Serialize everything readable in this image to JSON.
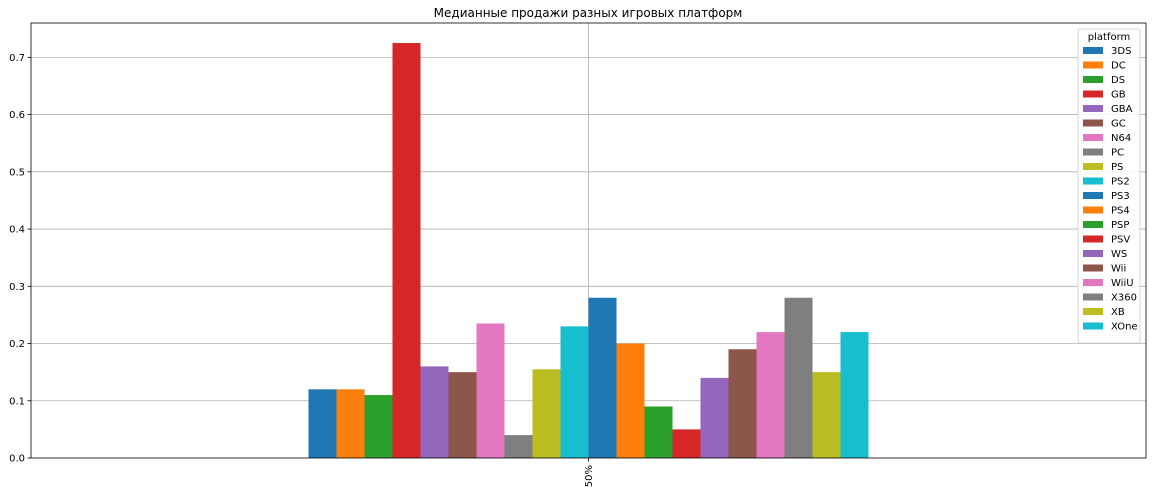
{
  "chart_data": {
    "type": "bar",
    "title": "Медианные продажи разных игровых платформ",
    "xlabel": "",
    "ylabel": "",
    "categories": [
      "50%"
    ],
    "ylim": [
      0,
      0.76
    ],
    "yticks": [
      "0.0",
      "0.1",
      "0.2",
      "0.3",
      "0.4",
      "0.5",
      "0.6",
      "0.7"
    ],
    "grid": true,
    "legend": {
      "title": "platform",
      "placement": "top-right"
    },
    "series": [
      {
        "name": "3DS",
        "color": "#1f77b4",
        "values": [
          0.12
        ]
      },
      {
        "name": "DC",
        "color": "#ff7f0e",
        "values": [
          0.12
        ]
      },
      {
        "name": "DS",
        "color": "#2ca02c",
        "values": [
          0.11
        ]
      },
      {
        "name": "GB",
        "color": "#d62728",
        "values": [
          0.725
        ]
      },
      {
        "name": "GBA",
        "color": "#9467bd",
        "values": [
          0.16
        ]
      },
      {
        "name": "GC",
        "color": "#8c564b",
        "values": [
          0.15
        ]
      },
      {
        "name": "N64",
        "color": "#e377c2",
        "values": [
          0.235
        ]
      },
      {
        "name": "PC",
        "color": "#7f7f7f",
        "values": [
          0.04
        ]
      },
      {
        "name": "PS",
        "color": "#bcbd22",
        "values": [
          0.155
        ]
      },
      {
        "name": "PS2",
        "color": "#17becf",
        "values": [
          0.23
        ]
      },
      {
        "name": "PS3",
        "color": "#1f77b4",
        "values": [
          0.28
        ]
      },
      {
        "name": "PS4",
        "color": "#ff7f0e",
        "values": [
          0.2
        ]
      },
      {
        "name": "PSP",
        "color": "#2ca02c",
        "values": [
          0.09
        ]
      },
      {
        "name": "PSV",
        "color": "#d62728",
        "values": [
          0.05
        ]
      },
      {
        "name": "WS",
        "color": "#9467bd",
        "values": [
          0.14
        ]
      },
      {
        "name": "Wii",
        "color": "#8c564b",
        "values": [
          0.19
        ]
      },
      {
        "name": "WiiU",
        "color": "#e377c2",
        "values": [
          0.22
        ]
      },
      {
        "name": "X360",
        "color": "#7f7f7f",
        "values": [
          0.28
        ]
      },
      {
        "name": "XB",
        "color": "#bcbd22",
        "values": [
          0.15
        ]
      },
      {
        "name": "XOne",
        "color": "#17becf",
        "values": [
          0.22
        ]
      }
    ]
  }
}
